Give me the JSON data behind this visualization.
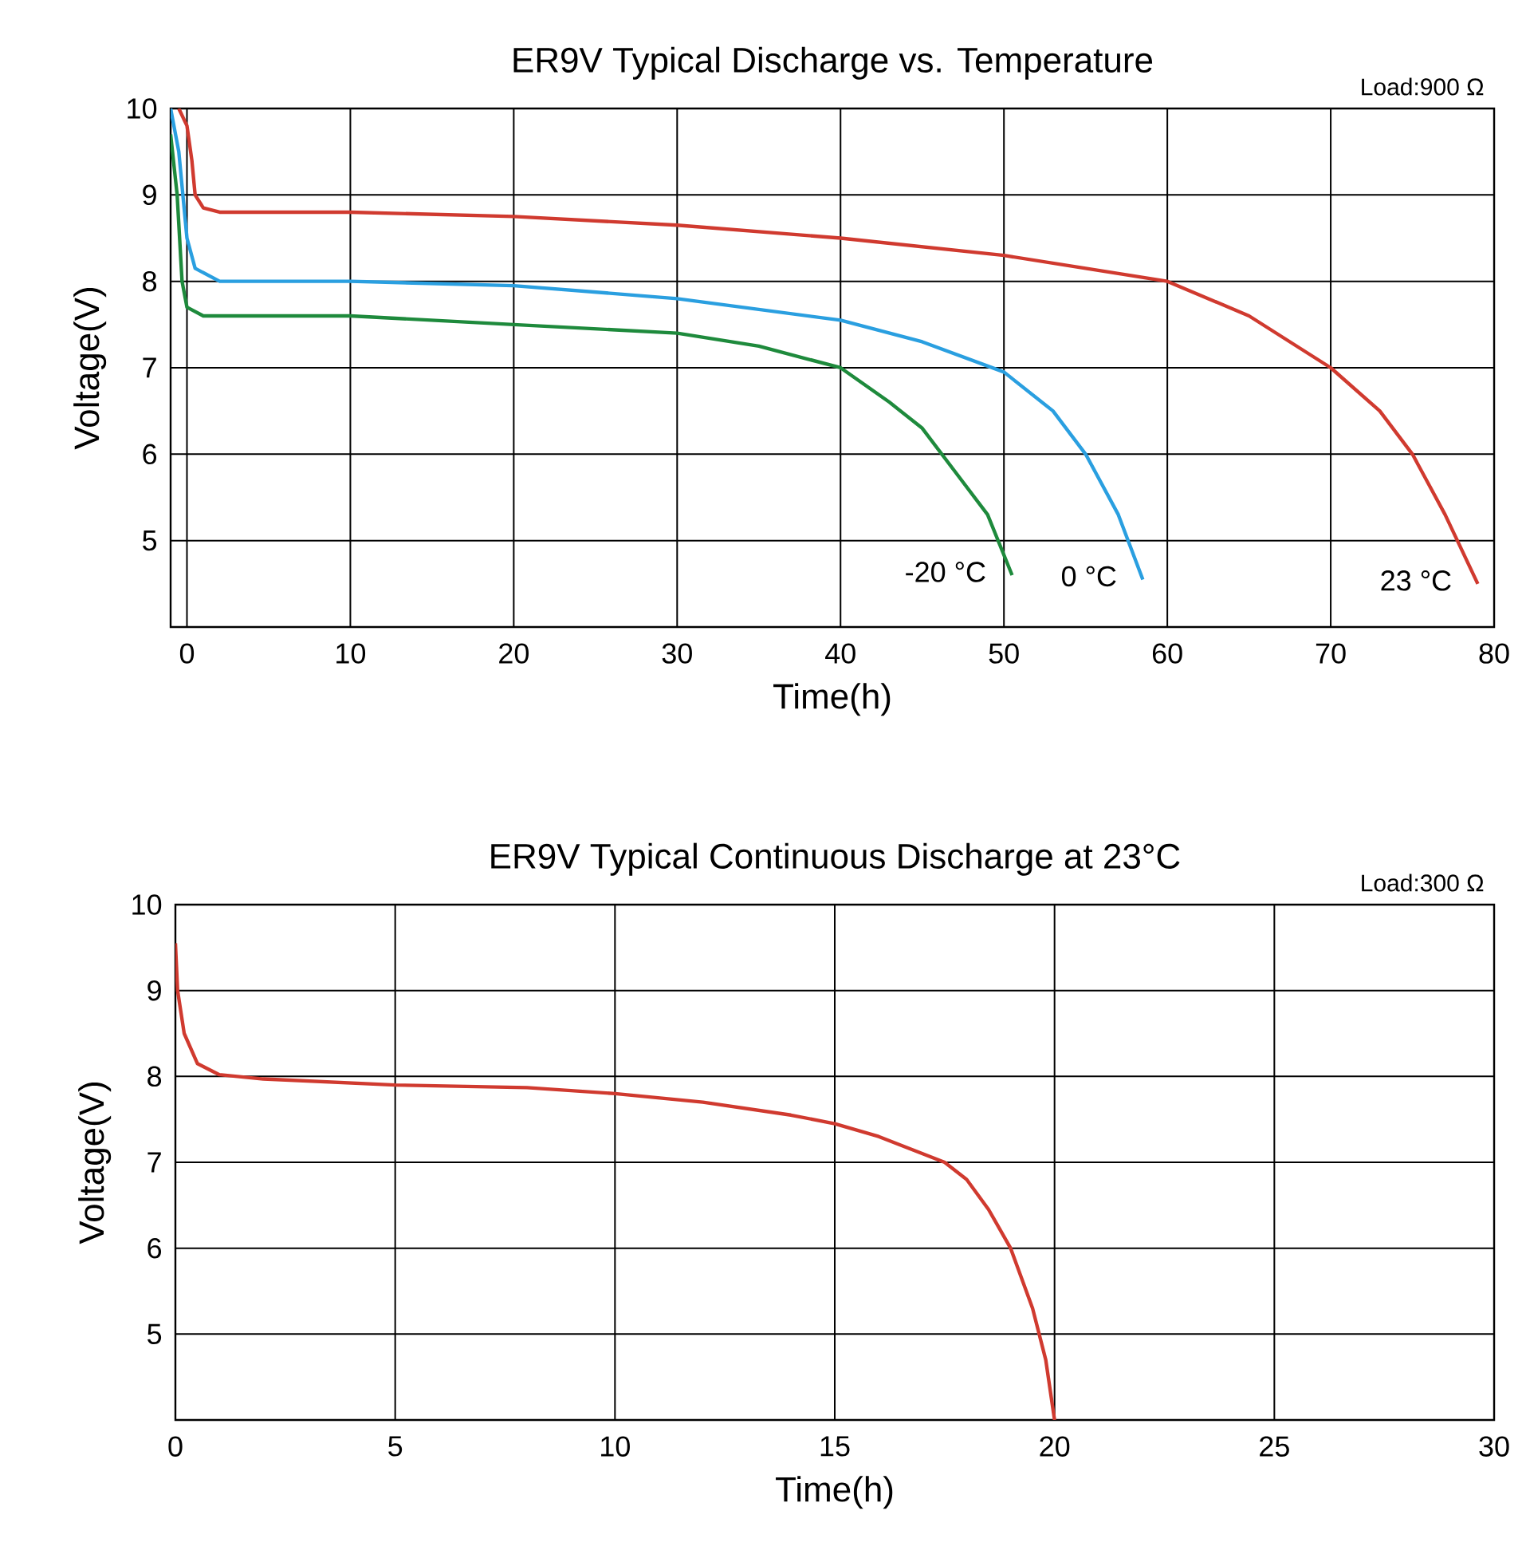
{
  "chart_data": [
    {
      "type": "line",
      "title": "ER9V Typical Discharge vs. Temperature",
      "xlabel": "Time(h)",
      "ylabel": "Voltage(V)",
      "xlim": [
        -1,
        80
      ],
      "ylim": [
        4,
        10
      ],
      "xticks": [
        0,
        10,
        20,
        30,
        40,
        50,
        60,
        70,
        80
      ],
      "yticks": [
        5,
        6,
        7,
        8,
        9,
        10
      ],
      "grid": true,
      "annotations": [
        "Load:900 Ω"
      ],
      "series": [
        {
          "name": "-20 °C",
          "color": "#1e8a3c",
          "x": [
            -1,
            -0.6,
            -0.3,
            0,
            1,
            10,
            20,
            30,
            35,
            40,
            43,
            45,
            47,
            49,
            50.5
          ],
          "values": [
            9.7,
            9.0,
            8.0,
            7.7,
            7.6,
            7.6,
            7.5,
            7.4,
            7.25,
            7.0,
            6.6,
            6.3,
            5.8,
            5.3,
            4.6
          ]
        },
        {
          "name": "0 °C",
          "color": "#2a9fe0",
          "x": [
            -1,
            -0.5,
            0,
            0.5,
            2,
            10,
            20,
            30,
            40,
            45,
            50,
            53,
            55,
            57,
            58.5
          ],
          "values": [
            10,
            9.5,
            8.5,
            8.15,
            8.0,
            8.0,
            7.95,
            7.8,
            7.55,
            7.3,
            6.95,
            6.5,
            6.0,
            5.3,
            4.55
          ]
        },
        {
          "name": "23 °C",
          "color": "#d03a2f",
          "x": [
            -0.5,
            0,
            0.3,
            0.5,
            1,
            2,
            10,
            20,
            30,
            40,
            50,
            55,
            60,
            65,
            70,
            73,
            75,
            77,
            79
          ],
          "values": [
            10,
            9.8,
            9.4,
            9.0,
            8.85,
            8.8,
            8.8,
            8.75,
            8.65,
            8.5,
            8.3,
            8.15,
            8.0,
            7.6,
            7.0,
            6.5,
            6.0,
            5.3,
            4.5
          ]
        }
      ]
    },
    {
      "type": "line",
      "title": "ER9V Typical Continuous Discharge at 23°C",
      "xlabel": "Time(h)",
      "ylabel": "Voltage(V)",
      "xlim": [
        0,
        30
      ],
      "ylim": [
        4,
        10
      ],
      "xticks": [
        0,
        5,
        10,
        15,
        20,
        25,
        30
      ],
      "yticks": [
        5,
        6,
        7,
        8,
        9,
        10
      ],
      "grid": true,
      "annotations": [
        "Load:300 Ω"
      ],
      "series": [
        {
          "color": "#d03a2f",
          "x": [
            0,
            0.05,
            0.2,
            0.5,
            1,
            2,
            5,
            8,
            10,
            12,
            14,
            15,
            16,
            17,
            17.5,
            18,
            18.5,
            19,
            19.5,
            19.8,
            20
          ],
          "values": [
            9.55,
            9.0,
            8.5,
            8.15,
            8.02,
            7.97,
            7.9,
            7.87,
            7.8,
            7.7,
            7.55,
            7.45,
            7.3,
            7.1,
            7.0,
            6.8,
            6.45,
            6.0,
            5.3,
            4.7,
            4.0
          ]
        }
      ]
    }
  ]
}
